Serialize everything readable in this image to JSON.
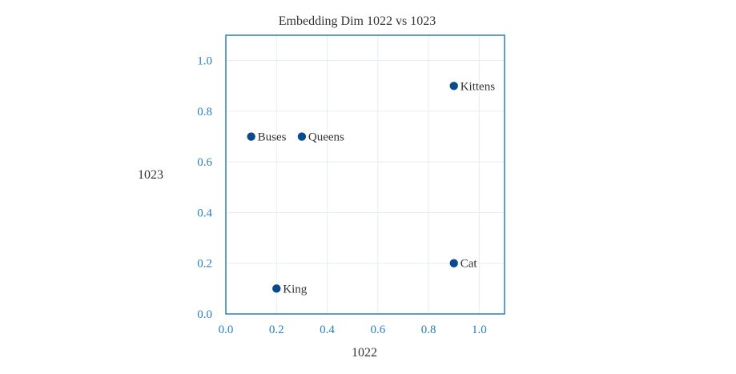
{
  "chart_data": {
    "type": "scatter",
    "title": "Embedding Dim 1022 vs 1023",
    "xlabel": "1022",
    "ylabel": "1023",
    "xlim": [
      0,
      1.1
    ],
    "ylim": [
      0,
      1.1
    ],
    "xticks": [
      0.0,
      0.2,
      0.4,
      0.6,
      0.8,
      1.0
    ],
    "yticks": [
      0.0,
      0.2,
      0.4,
      0.6,
      0.8,
      1.0
    ],
    "xtick_labels": [
      "0.0",
      "0.2",
      "0.4",
      "0.6",
      "0.8",
      "1.0"
    ],
    "ytick_labels": [
      "0.0",
      "0.2",
      "0.4",
      "0.6",
      "0.8",
      "1.0"
    ],
    "grid": true,
    "points": [
      {
        "label": "Kittens",
        "x": 0.9,
        "y": 0.9
      },
      {
        "label": "Buses",
        "x": 0.1,
        "y": 0.7
      },
      {
        "label": "Queens",
        "x": 0.3,
        "y": 0.7
      },
      {
        "label": "Cat",
        "x": 0.9,
        "y": 0.2
      },
      {
        "label": "King",
        "x": 0.2,
        "y": 0.1
      }
    ],
    "colors": {
      "marker": "#0b4a8b",
      "axis": "#2a7fbf",
      "grid": "#e6ecf5",
      "text": "#333333"
    }
  }
}
